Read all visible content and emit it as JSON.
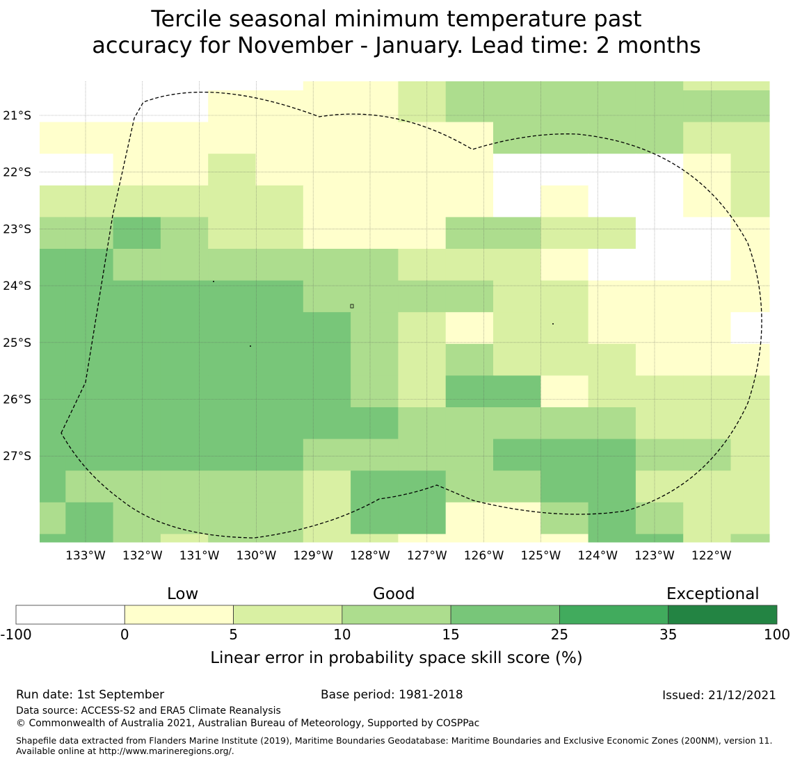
{
  "title_line1": "Tercile seasonal minimum temperature past",
  "title_line2": "accuracy for November - January. Lead time: 2 months",
  "map": {
    "lon_ticks": [
      "133°W",
      "132°W",
      "131°W",
      "130°W",
      "129°W",
      "128°W",
      "127°W",
      "126°W",
      "125°W",
      "124°W",
      "123°W",
      "122°W"
    ],
    "lat_ticks": [
      "21°S",
      "22°S",
      "23°S",
      "24°S",
      "25°S",
      "26°S",
      "27°S"
    ],
    "legend_colors": [
      "#ffffff",
      "#ffffcc",
      "#d9f0a3",
      "#addd8e",
      "#78c679",
      "#41ab5d",
      "#238443"
    ],
    "grid_rows": [
      "0000001123333322",
      "0000111123333333",
      "1111111111333322",
      "0011211111000012",
      "2222221111010012",
      "3343221113322001",
      "4433333322210001",
      "4444443333221111",
      "4444444321221110",
      "4444444323222111",
      "4444444324412222",
      "4444444433333222",
      "4444443333444332",
      "4333332443344222",
      "3433332441134322",
      "4432332211114423"
    ]
  },
  "colorbar": {
    "categories": [
      "Low",
      "Good",
      "Exceptional"
    ],
    "ticks": [
      "-100",
      "0",
      "5",
      "10",
      "15",
      "25",
      "35",
      "100"
    ],
    "label": "Linear error in probability space skill score (%)"
  },
  "footer": {
    "run_date": "Run date: 1st September",
    "base_period": "Base period: 1981-2018",
    "issued": "Issued: 21/12/2021",
    "data_source": "Data source: ACCESS-S2 and ERA5 Climate Reanalysis",
    "copyright": "© Commonwealth of Australia 2021, Australian Bureau of Meteorology, Supported by COSPPac",
    "shapefile": "Shapefile data extracted from Flanders Marine Institute (2019), Maritime Boundaries Geodatabase: Maritime Boundaries and Exclusive Economic Zones (200NM), version 11. Available online at http://www.marineregions.org/."
  }
}
